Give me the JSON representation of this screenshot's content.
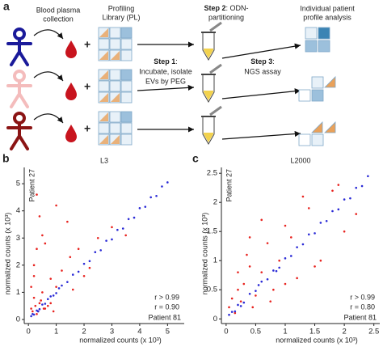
{
  "diagram": {
    "panel": "a",
    "blood_line1": "Blood plasma",
    "blood_line2": "collection",
    "plus": "+",
    "pl_line1": "Profiling",
    "pl_line2": "Library (PL)",
    "step2_label": "Step 2",
    "step2_rest": ": ODN-",
    "step2_line2": "partitioning",
    "out_line1": "Individual patient",
    "out_line2": "profile analysis",
    "step1_label": "Step 1",
    "step1_rest": ":",
    "step1_line2": "Incubate, isolate",
    "step1_line3": "EVs by PEG",
    "step3_label": "Step 3",
    "step3_rest": ":",
    "step3_line2": "NGS assay"
  },
  "chart_data": [
    {
      "type": "scatter",
      "panel": "b",
      "title": "L3",
      "xlabel": "normalized counts (x 10³)",
      "ylabel": "normalized counts (x 10³)",
      "top_label": "Patient 27",
      "bottom_label": "Patient 81",
      "xlim": [
        -0.15,
        5.6
      ],
      "ylim": [
        -0.15,
        5.6
      ],
      "xticks": [
        0,
        1,
        2,
        3,
        4,
        5
      ],
      "yticks": [
        0,
        1,
        2,
        3,
        4,
        5
      ],
      "series": [
        {
          "color": "#e8231f",
          "x": [
            0.1,
            0.2,
            0.3,
            0.1,
            0.4,
            0.5,
            0.2,
            0.6,
            0.8,
            0.3,
            1.0,
            0.5,
            1.2,
            1.5,
            0.7,
            1.8,
            2.0,
            0.4,
            2.5,
            1.0,
            3.0,
            0.2,
            0.8,
            1.4,
            0.6,
            2.2,
            0.3,
            1.6,
            3.5,
            0.9,
            0.15,
            0.25,
            0.45,
            0.35,
            0.55
          ],
          "values": [
            0.4,
            0.8,
            0.2,
            1.2,
            0.6,
            1.0,
            2.0,
            0.4,
            1.5,
            2.6,
            1.2,
            3.1,
            1.8,
            2.3,
            0.5,
            2.6,
            1.6,
            3.8,
            3.0,
            4.2,
            3.4,
            1.6,
            0.6,
            3.6,
            2.8,
            1.9,
            4.6,
            1.1,
            3.1,
            0.3,
            0.3,
            0.5,
            0.7,
            0.3,
            0.4
          ]
        },
        {
          "color": "#2a2ad6",
          "x": [
            0.1,
            0.2,
            0.3,
            0.4,
            0.5,
            0.6,
            0.8,
            1.0,
            1.2,
            1.4,
            1.6,
            1.8,
            2.0,
            2.2,
            2.4,
            2.6,
            2.8,
            3.0,
            3.2,
            3.4,
            3.6,
            3.8,
            4.0,
            4.2,
            4.4,
            4.6,
            4.8,
            5.0,
            0.15,
            0.35,
            0.7,
            0.9,
            1.1
          ],
          "values": [
            0.12,
            0.18,
            0.33,
            0.38,
            0.55,
            0.58,
            0.85,
            0.97,
            1.25,
            1.38,
            1.65,
            1.76,
            2.05,
            2.15,
            2.48,
            2.55,
            2.9,
            2.95,
            3.3,
            3.35,
            3.7,
            3.75,
            4.1,
            4.15,
            4.5,
            4.55,
            4.9,
            5.05,
            0.2,
            0.3,
            0.75,
            0.88,
            1.15
          ]
        }
      ],
      "annotations": [
        {
          "text": "r > 0.99",
          "color": "#2a2ad6"
        },
        {
          "text": "r = 0.90",
          "color": "#e8231f"
        }
      ]
    },
    {
      "type": "scatter",
      "panel": "c",
      "title": "L2000",
      "xlabel": "normalized counts (x 10³)",
      "ylabel": "normalized counts (x 10³)",
      "top_label": "Patient 27",
      "bottom_label": "Patient 81",
      "xlim": [
        -0.08,
        2.6
      ],
      "ylim": [
        -0.08,
        2.6
      ],
      "xticks": [
        0,
        0.5,
        1,
        1.5,
        2,
        2.5
      ],
      "yticks": [
        0,
        0.5,
        1,
        1.5,
        2,
        2.5
      ],
      "series": [
        {
          "color": "#e8231f",
          "x": [
            0.05,
            0.1,
            0.15,
            0.2,
            0.3,
            0.25,
            0.4,
            0.5,
            0.35,
            0.6,
            0.7,
            0.45,
            0.8,
            1.0,
            0.9,
            1.2,
            1.4,
            1.1,
            1.6,
            1.8,
            2.0,
            0.6,
            1.3,
            0.2,
            1.5,
            0.75,
            1.9,
            1.0,
            0.4,
            2.2
          ],
          "values": [
            0.2,
            0.35,
            0.1,
            0.5,
            0.6,
            0.3,
            0.9,
            0.4,
            1.1,
            0.8,
            1.3,
            0.2,
            0.5,
            1.6,
            1.0,
            0.7,
            1.9,
            1.4,
            1.0,
            2.2,
            1.5,
            1.7,
            2.1,
            0.8,
            0.9,
            0.3,
            2.3,
            0.6,
            1.4,
            1.8
          ]
        },
        {
          "color": "#2a2ad6",
          "x": [
            0.05,
            0.1,
            0.15,
            0.2,
            0.3,
            0.4,
            0.5,
            0.6,
            0.7,
            0.8,
            0.9,
            1.0,
            1.1,
            1.2,
            1.3,
            1.4,
            1.5,
            1.6,
            1.7,
            1.8,
            1.9,
            2.0,
            2.1,
            2.2,
            2.3,
            2.4,
            0.25,
            0.55,
            0.85
          ],
          "values": [
            0.07,
            0.12,
            0.13,
            0.24,
            0.28,
            0.43,
            0.48,
            0.64,
            0.68,
            0.83,
            0.88,
            1.04,
            1.08,
            1.23,
            1.28,
            1.45,
            1.47,
            1.65,
            1.68,
            1.85,
            1.88,
            2.05,
            2.07,
            2.25,
            2.28,
            2.45,
            0.22,
            0.58,
            0.82
          ]
        }
      ],
      "annotations": [
        {
          "text": "r > 0.99",
          "color": "#2a2ad6"
        },
        {
          "text": "r = 0.80",
          "color": "#e8231f"
        }
      ]
    }
  ]
}
